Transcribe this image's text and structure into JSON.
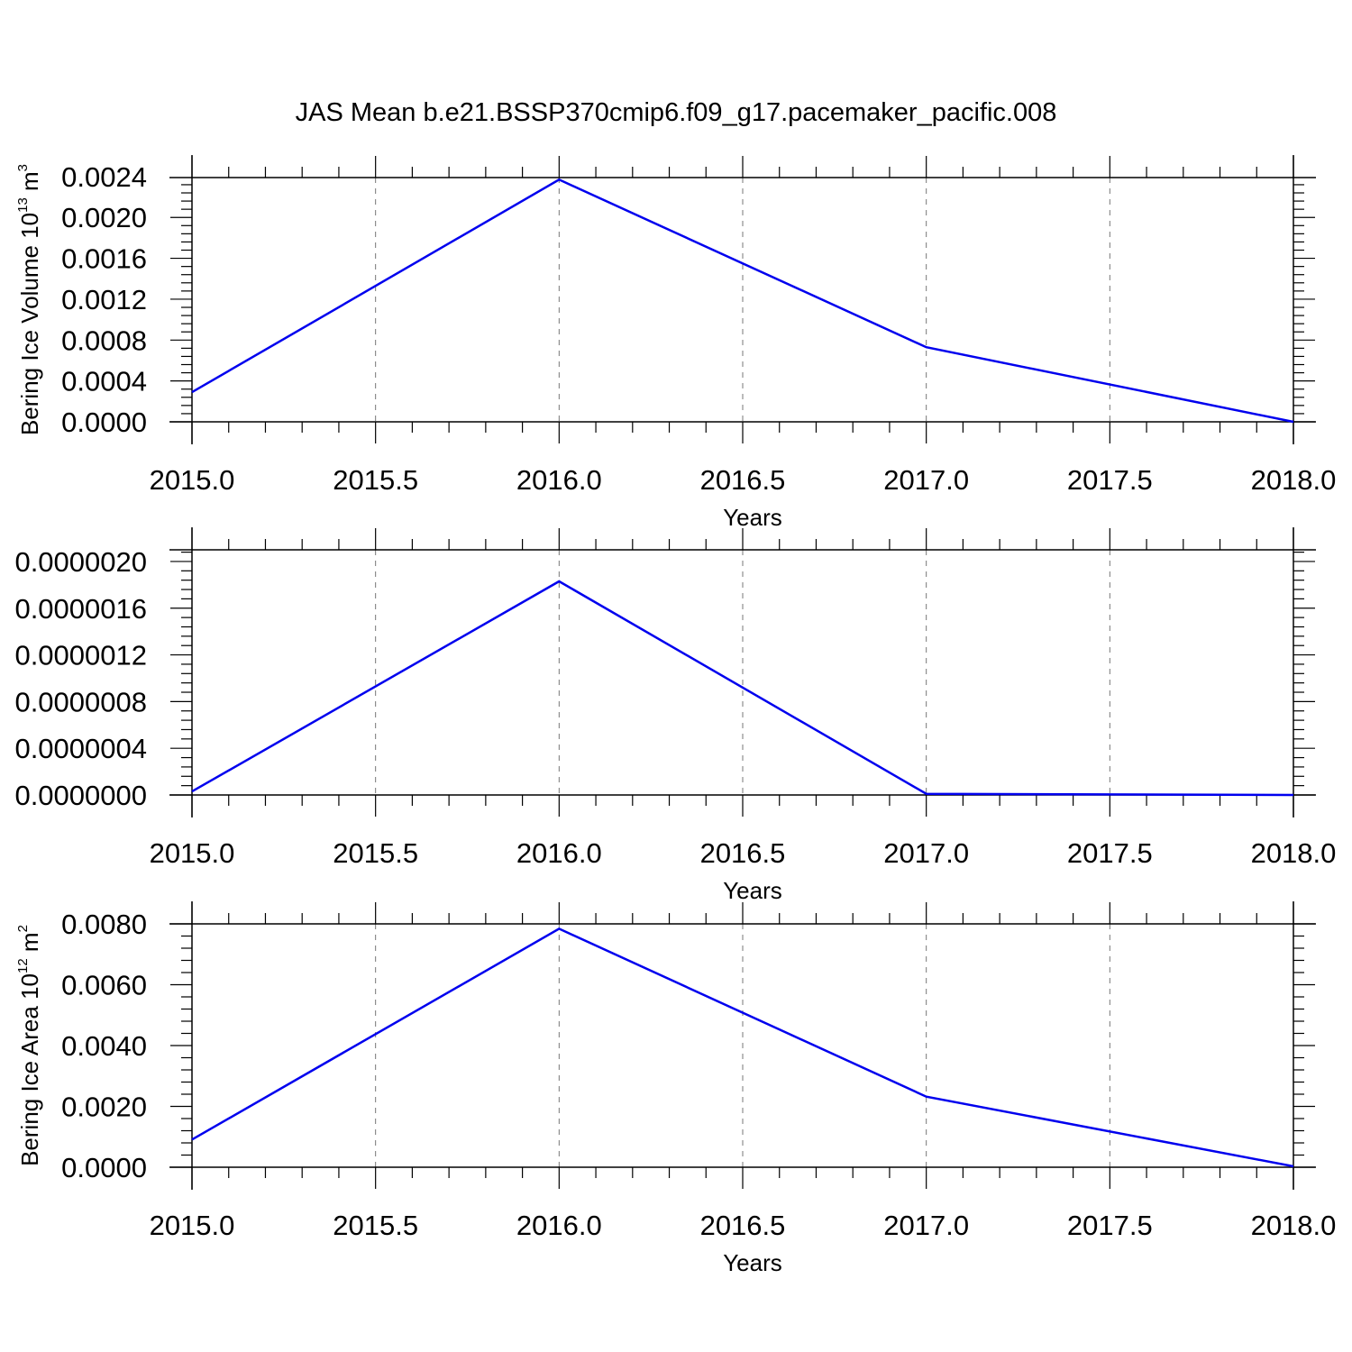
{
  "figure": {
    "title": "JAS Mean b.e21.BSSP370cmip6.f09_g17.pacemaker_pacific.008"
  },
  "chart_data": [
    {
      "type": "line",
      "x": [
        2015,
        2016,
        2017,
        2018
      ],
      "series": [
        {
          "values": [
            0.00029,
            0.00237,
            0.00073,
            0.0
          ]
        }
      ],
      "xlim": [
        2015,
        2018
      ],
      "ylim": [
        0,
        0.00239
      ],
      "xticks": [
        "2015.0",
        "2015.5",
        "2016.0",
        "2016.5",
        "2017.0",
        "2017.5",
        "2018.0"
      ],
      "yticks": [
        "0.0000",
        "0.0004",
        "0.0008",
        "0.0012",
        "0.0016",
        "0.0020",
        "0.0024"
      ],
      "yticks_values": [
        0,
        0.0004,
        0.0008,
        0.0012,
        0.0016,
        0.002,
        0.0024
      ],
      "xlabel": "Years",
      "ylabel_main": "Bering Ice Volume 10",
      "ylabel_sup": "13",
      "ylabel_unit": " m",
      "ylabel_unit_sup": "3",
      "line_color": "#0000ee",
      "grid": "vertical dashed"
    },
    {
      "type": "line",
      "x": [
        2015,
        2016,
        2017,
        2018
      ],
      "series": [
        {
          "values": [
            3e-08,
            1.83e-06,
            1e-08,
            0.0
          ]
        }
      ],
      "xlim": [
        2015,
        2018
      ],
      "ylim": [
        0,
        2.1e-06
      ],
      "xticks": [
        "2015.0",
        "2015.5",
        "2016.0",
        "2016.5",
        "2017.0",
        "2017.5",
        "2018.0"
      ],
      "yticks": [
        "0.0000000",
        "0.0000004",
        "0.0000008",
        "0.0000012",
        "0.0000016",
        "0.0000020"
      ],
      "yticks_values": [
        0,
        4e-07,
        8e-07,
        1.2e-06,
        1.6e-06,
        2e-06
      ],
      "xlabel": "Years",
      "ylabel_main": "",
      "ylabel_sup": "",
      "ylabel_unit": "",
      "ylabel_unit_sup": "",
      "line_color": "#0000ee",
      "grid": "vertical dashed"
    },
    {
      "type": "line",
      "x": [
        2015,
        2016,
        2017,
        2018
      ],
      "series": [
        {
          "values": [
            0.00091,
            0.00784,
            0.00232,
            3e-05
          ]
        }
      ],
      "xlim": [
        2015,
        2018
      ],
      "ylim": [
        0,
        0.008
      ],
      "xticks": [
        "2015.0",
        "2015.5",
        "2016.0",
        "2016.5",
        "2017.0",
        "2017.5",
        "2018.0"
      ],
      "yticks": [
        "0.0000",
        "0.0020",
        "0.0040",
        "0.0060",
        "0.0080"
      ],
      "yticks_values": [
        0,
        0.002,
        0.004,
        0.006,
        0.008
      ],
      "xlabel": "Years",
      "ylabel_main": "Bering Ice Area 10",
      "ylabel_sup": "12",
      "ylabel_unit": " m",
      "ylabel_unit_sup": "2",
      "line_color": "#0000ee",
      "grid": "vertical dashed"
    }
  ]
}
